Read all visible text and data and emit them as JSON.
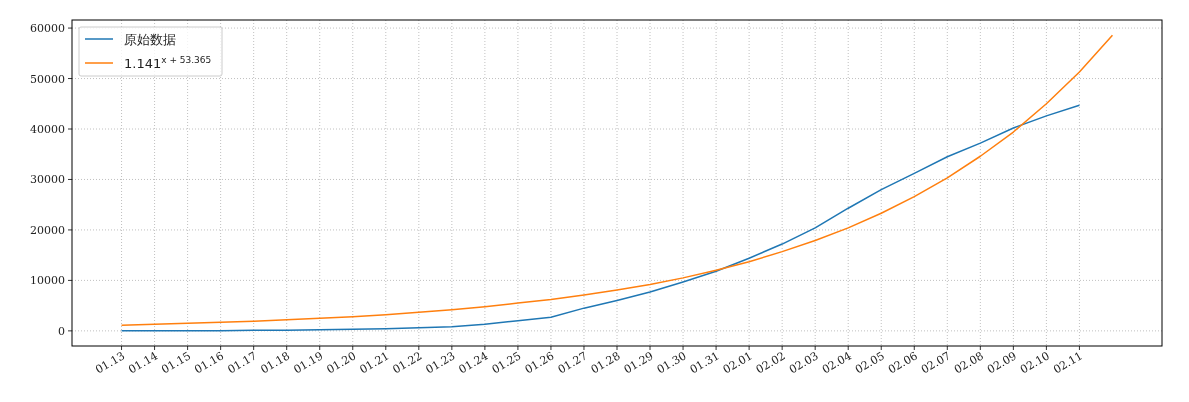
{
  "chart_data": {
    "type": "line",
    "categories": [
      "01.13",
      "01.14",
      "01.15",
      "01.16",
      "01.17",
      "01.18",
      "01.19",
      "01.20",
      "01.21",
      "01.22",
      "01.23",
      "01.24",
      "01.25",
      "01.26",
      "01.27",
      "01.28",
      "01.29",
      "01.30",
      "01.31",
      "02.01",
      "02.02",
      "02.03",
      "02.04",
      "02.05",
      "02.06",
      "02.07",
      "02.08",
      "02.09",
      "02.10",
      "02.11",
      null
    ],
    "series": [
      {
        "name": "原始数据",
        "color": "#1f77b4",
        "values": [
          0,
          0,
          0,
          0,
          100,
          100,
          200,
          300,
          400,
          600,
          800,
          1300,
          2000,
          2700,
          4500,
          6000,
          7700,
          9700,
          11800,
          14400,
          17200,
          20400,
          24300,
          28000,
          31200,
          34500,
          37200,
          40200,
          42600,
          44700,
          null
        ]
      },
      {
        "name": "1.141$^{x + 53.365}$",
        "color": "#ff7f0e",
        "values": [
          1100,
          1300,
          1500,
          1700,
          1900,
          2200,
          2500,
          2800,
          3200,
          3700,
          4200,
          4800,
          5500,
          6200,
          7100,
          8100,
          9200,
          10500,
          12000,
          13700,
          15700,
          17900,
          20400,
          23300,
          26600,
          30300,
          34600,
          39400,
          45000,
          51300,
          58600
        ]
      }
    ],
    "ylim": [
      -3000,
      61600
    ],
    "yticks": [
      0,
      10000,
      20000,
      30000,
      40000,
      50000,
      60000
    ],
    "grid": true,
    "legend": "top left"
  }
}
